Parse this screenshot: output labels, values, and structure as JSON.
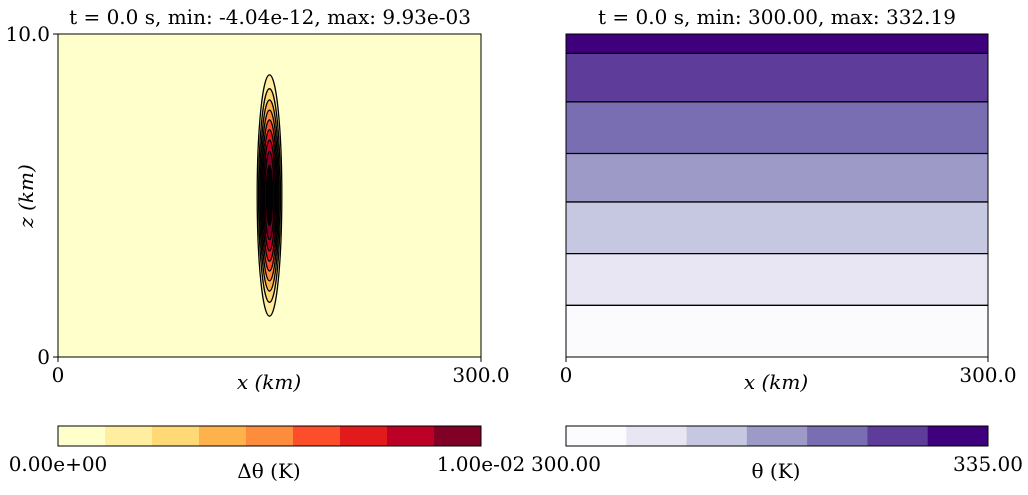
{
  "chart_data": [
    {
      "type": "contour",
      "title": "t = 0.0 s, min: -4.04e-12, max: 9.93e-03",
      "xlabel": "x (km)",
      "ylabel": "z (km)",
      "xlim": [
        0,
        300.0
      ],
      "ylim": [
        0,
        10.0
      ],
      "x_tick_labels": [
        "0",
        "300.0"
      ],
      "y_tick_labels": [
        "0",
        "10.0"
      ],
      "field": "temperature perturbation",
      "bubble": {
        "x_center_km": 150,
        "z_center_km": 5.0,
        "x_halfwidth_km": 11,
        "z_halfwidth_km": 4.7,
        "peak": 0.00993
      },
      "contour_levels": [
        0.001,
        0.002,
        0.003,
        0.004,
        0.005,
        0.006,
        0.007,
        0.008,
        0.009
      ],
      "colorbar": {
        "label": "Δθ (K)",
        "min_label": "0.00e+00",
        "max_label": "1.00e-02",
        "colors": [
          "#ffffcc",
          "#ffeda0",
          "#fed976",
          "#feb24c",
          "#fd8d3c",
          "#fc4e2a",
          "#e31a1c",
          "#bd0026",
          "#800026"
        ]
      }
    },
    {
      "type": "contour",
      "title": "t = 0.0 s, min: 300.00, max: 332.19",
      "xlabel": "x (km)",
      "ylabel": "",
      "xlim": [
        0,
        300.0
      ],
      "ylim": [
        0,
        10.0
      ],
      "x_tick_labels": [
        "0",
        "300.0"
      ],
      "field": "potential temperature",
      "band_boundaries_km": [
        0,
        1.6,
        3.2,
        4.8,
        6.3,
        7.9,
        9.4,
        10.0
      ],
      "band_colors": [
        "#fbfafd",
        "#e8e6f2",
        "#c6c7e1",
        "#9e9ac8",
        "#796eb2",
        "#5e3c99",
        "#3f007d"
      ],
      "colorbar": {
        "label": "θ (K)",
        "min_label": "300.00",
        "max_label": "335.00",
        "colors": [
          "#fcfbfd",
          "#e8e6f2",
          "#c6c7e1",
          "#9e9ac8",
          "#796eb2",
          "#5e3c99",
          "#3f007d"
        ]
      }
    }
  ]
}
